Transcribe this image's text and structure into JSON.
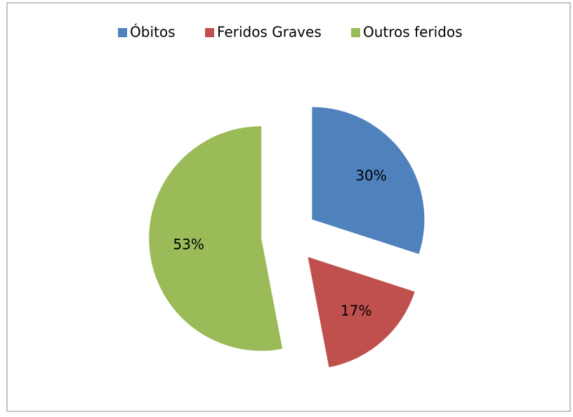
{
  "chart_data": {
    "type": "pie",
    "legend": "top",
    "categories": [
      "Óbitos",
      "Feridos Graves",
      "Outros feridos"
    ],
    "values": [
      30,
      17,
      53
    ],
    "value_labels": [
      "30%",
      "17%",
      "53%"
    ],
    "colors": [
      "#4f81bd",
      "#c0504d",
      "#9bbb59"
    ],
    "exploded": true
  }
}
